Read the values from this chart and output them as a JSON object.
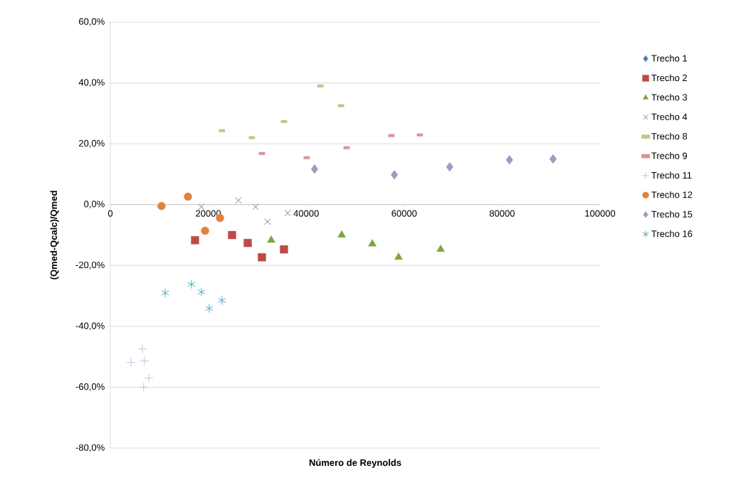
{
  "chart_data": {
    "type": "scatter",
    "xlabel": "Número de Reynolds",
    "ylabel": "(Qmed-Qcalc)/Qmed",
    "xlim": [
      0,
      100000
    ],
    "ylim": [
      -80,
      60
    ],
    "xticks": [
      0,
      20000,
      40000,
      60000,
      80000,
      100000
    ],
    "yticks": [
      {
        "value": -80,
        "label": "-80,0%"
      },
      {
        "value": -60,
        "label": "-60,0%"
      },
      {
        "value": -40,
        "label": "-40,0%"
      },
      {
        "value": -20,
        "label": "-20,0%"
      },
      {
        "value": 0,
        "label": "0,0%"
      },
      {
        "value": 20,
        "label": "20,0%"
      },
      {
        "value": 40,
        "label": "40,0%"
      },
      {
        "value": 60,
        "label": "60,0%"
      }
    ],
    "grid": "y",
    "legend": "right",
    "series": [
      {
        "name": "Trecho 1",
        "color": "#4a7ebb",
        "marker": "diamond"
      },
      {
        "name": "Trecho 2",
        "color": "#be4b48",
        "marker": "square",
        "x": [
          17300,
          24850,
          28050,
          30950,
          35450
        ],
        "values": [
          -11.7,
          -10.0,
          -12.6,
          -17.3,
          -14.7
        ]
      },
      {
        "name": "Trecho 3",
        "color": "#7ea63e",
        "marker": "triangle",
        "x": [
          32850,
          47250,
          53500,
          58850,
          67450
        ],
        "values": [
          -11.7,
          -10.0,
          -12.9,
          -17.3,
          -14.7
        ]
      },
      {
        "name": "Trecho 4",
        "color": "#7d60a0",
        "marker": "cross",
        "x": [
          18600,
          26150,
          29650,
          32100,
          36200
        ],
        "values": [
          -0.7,
          1.4,
          -0.7,
          -5.6,
          -2.8
        ]
      },
      {
        "name": "Trecho 8",
        "color": "#b3cd8a",
        "marker": "square",
        "x": [
          22800,
          28900,
          35450,
          42900,
          47100
        ],
        "values": [
          24.3,
          22.0,
          27.3,
          39.0,
          32.5
        ]
      },
      {
        "name": "Trecho 9",
        "color": "#d99694",
        "marker": "square",
        "x": [
          30950,
          40100,
          48250,
          57400,
          63200
        ],
        "values": [
          16.8,
          15.4,
          18.7,
          22.7,
          22.9
        ]
      },
      {
        "name": "Trecho 11",
        "color": "#95b3d7",
        "marker": "plus",
        "x": [
          6550,
          4200,
          6950,
          7850,
          6800
        ],
        "values": [
          -47.4,
          -51.9,
          -51.4,
          -57.0,
          -60.0
        ]
      },
      {
        "name": "Trecho 12",
        "color": "#e0833d",
        "marker": "circle",
        "x": [
          10450,
          15850,
          22400,
          19350
        ],
        "values": [
          -0.5,
          2.6,
          -4.4,
          -8.6
        ]
      },
      {
        "name": "Trecho 15",
        "color": "#a597c1",
        "marker": "diamond",
        "x": [
          41700,
          58000,
          69300,
          81500,
          90400
        ],
        "values": [
          11.7,
          9.8,
          12.4,
          14.7,
          15.0
        ]
      },
      {
        "name": "Trecho 16",
        "color": "#4bacc6",
        "x": [
          11200,
          16550,
          18600,
          20200,
          22800
        ],
        "values": [
          -29.0,
          -26.2,
          -28.7,
          -34.1,
          -31.5
        ]
      }
    ]
  }
}
